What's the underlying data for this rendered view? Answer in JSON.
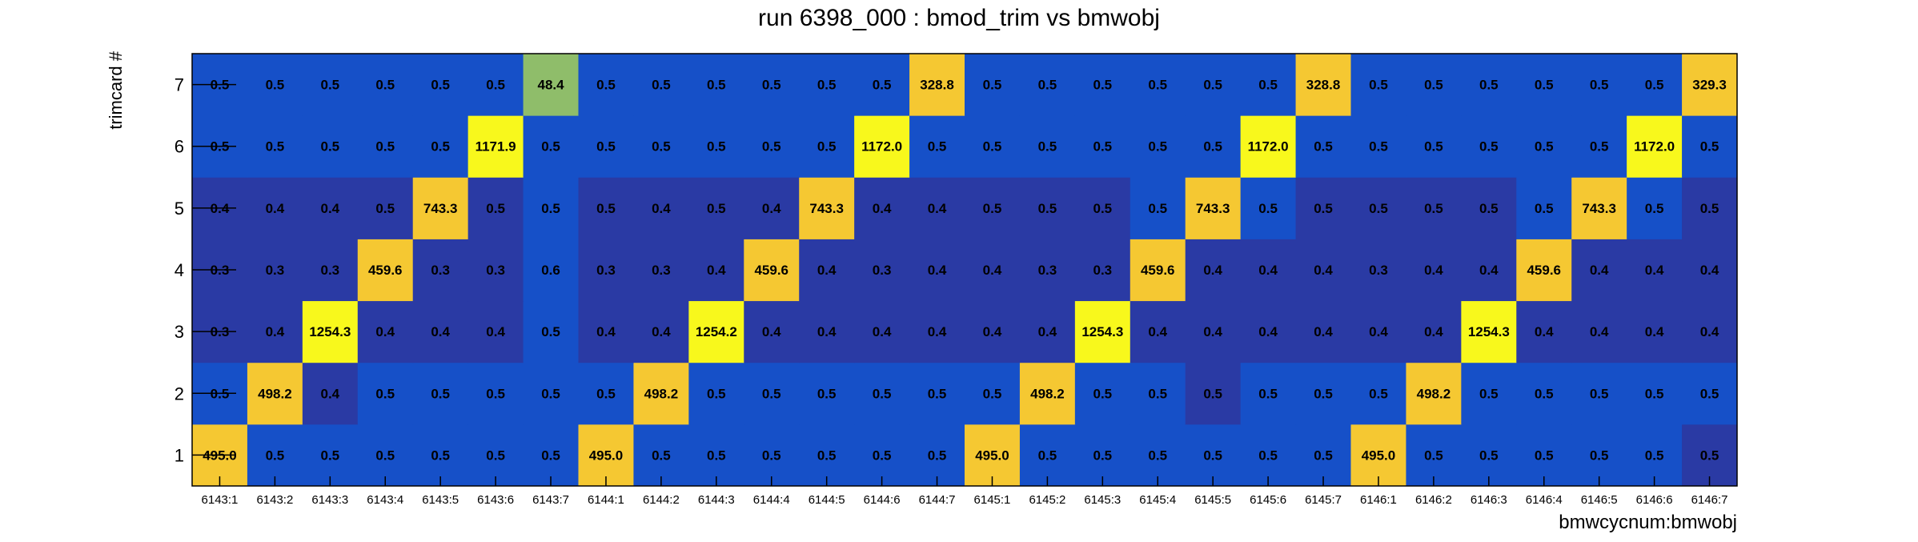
{
  "chart_data": {
    "type": "heatmap",
    "title": "run 6398_000 : bmod_trim vs bmwobj",
    "xlabel": "bmwcycnum:bmwobj",
    "ylabel": "trimcard #",
    "x_categories": [
      "6143:1",
      "6143:2",
      "6143:3",
      "6143:4",
      "6143:5",
      "6143:6",
      "6143:7",
      "6144:1",
      "6144:2",
      "6144:3",
      "6144:4",
      "6144:5",
      "6144:6",
      "6144:7",
      "6145:1",
      "6145:2",
      "6145:3",
      "6145:4",
      "6145:5",
      "6145:6",
      "6145:7",
      "6146:1",
      "6146:2",
      "6146:3",
      "6146:4",
      "6146:5",
      "6146:6",
      "6146:7"
    ],
    "y_categories": [
      "1",
      "2",
      "3",
      "4",
      "5",
      "6",
      "7"
    ],
    "cell_labels": [
      [
        "495.0",
        "0.5",
        "0.5",
        "0.5",
        "0.5",
        "0.5",
        "0.5",
        "495.0",
        "0.5",
        "0.5",
        "0.5",
        "0.5",
        "0.5",
        "0.5",
        "495.0",
        "0.5",
        "0.5",
        "0.5",
        "0.5",
        "0.5",
        "0.5",
        "495.0",
        "0.5",
        "0.5",
        "0.5",
        "0.5",
        "0.5",
        "0.5"
      ],
      [
        "0.5",
        "498.2",
        "0.4",
        "0.5",
        "0.5",
        "0.5",
        "0.5",
        "0.5",
        "498.2",
        "0.5",
        "0.5",
        "0.5",
        "0.5",
        "0.5",
        "0.5",
        "498.2",
        "0.5",
        "0.5",
        "0.5",
        "0.5",
        "0.5",
        "0.5",
        "498.2",
        "0.5",
        "0.5",
        "0.5",
        "0.5",
        "0.5"
      ],
      [
        "0.3",
        "0.4",
        "1254.3",
        "0.4",
        "0.4",
        "0.4",
        "0.5",
        "0.4",
        "0.4",
        "1254.2",
        "0.4",
        "0.4",
        "0.4",
        "0.4",
        "0.4",
        "0.4",
        "1254.3",
        "0.4",
        "0.4",
        "0.4",
        "0.4",
        "0.4",
        "0.4",
        "1254.3",
        "0.4",
        "0.4",
        "0.4",
        "0.4"
      ],
      [
        "0.3",
        "0.3",
        "0.3",
        "459.6",
        "0.3",
        "0.3",
        "0.6",
        "0.3",
        "0.3",
        "0.4",
        "459.6",
        "0.4",
        "0.3",
        "0.4",
        "0.4",
        "0.3",
        "0.3",
        "459.6",
        "0.4",
        "0.4",
        "0.4",
        "0.3",
        "0.4",
        "0.4",
        "459.6",
        "0.4",
        "0.4",
        "0.4"
      ],
      [
        "0.4",
        "0.4",
        "0.4",
        "0.5",
        "743.3",
        "0.5",
        "0.5",
        "0.5",
        "0.4",
        "0.5",
        "0.4",
        "743.3",
        "0.4",
        "0.4",
        "0.5",
        "0.5",
        "0.5",
        "0.5",
        "743.3",
        "0.5",
        "0.5",
        "0.5",
        "0.5",
        "0.5",
        "0.5",
        "743.3",
        "0.5",
        "0.5"
      ],
      [
        "0.5",
        "0.5",
        "0.5",
        "0.5",
        "0.5",
        "1171.9",
        "0.5",
        "0.5",
        "0.5",
        "0.5",
        "0.5",
        "0.5",
        "1172.0",
        "0.5",
        "0.5",
        "0.5",
        "0.5",
        "0.5",
        "0.5",
        "1172.0",
        "0.5",
        "0.5",
        "0.5",
        "0.5",
        "0.5",
        "0.5",
        "1172.0",
        "0.5"
      ],
      [
        "0.5",
        "0.5",
        "0.5",
        "0.5",
        "0.5",
        "0.5",
        "48.4",
        "0.5",
        "0.5",
        "0.5",
        "0.5",
        "0.5",
        "0.5",
        "328.8",
        "0.5",
        "0.5",
        "0.5",
        "0.5",
        "0.5",
        "0.5",
        "328.8",
        "0.5",
        "0.5",
        "0.5",
        "0.5",
        "0.5",
        "0.5",
        "329.3"
      ]
    ],
    "cell_colors": [
      [
        "#f5c832",
        "#1650c8",
        "#1650c8",
        "#1650c8",
        "#1650c8",
        "#1650c8",
        "#1650c8",
        "#f5c832",
        "#1650c8",
        "#1650c8",
        "#1650c8",
        "#1650c8",
        "#1650c8",
        "#1650c8",
        "#f5c832",
        "#1650c8",
        "#1650c8",
        "#1650c8",
        "#1650c8",
        "#1650c8",
        "#1650c8",
        "#f5c832",
        "#1650c8",
        "#1650c8",
        "#1650c8",
        "#1650c8",
        "#1650c8",
        "#2a3aa4"
      ],
      [
        "#1650c8",
        "#f5c832",
        "#2a3aa4",
        "#1650c8",
        "#1650c8",
        "#1650c8",
        "#1650c8",
        "#1650c8",
        "#f5c832",
        "#1650c8",
        "#1650c8",
        "#1650c8",
        "#1650c8",
        "#1650c8",
        "#1650c8",
        "#f5c832",
        "#1650c8",
        "#1650c8",
        "#2a3aa4",
        "#1650c8",
        "#1650c8",
        "#1650c8",
        "#f5c832",
        "#1650c8",
        "#1650c8",
        "#1650c8",
        "#1650c8",
        "#1650c8"
      ],
      [
        "#2a3aa4",
        "#2a3aa4",
        "#f8f81c",
        "#2a3aa4",
        "#2a3aa4",
        "#2a3aa4",
        "#1650c8",
        "#2a3aa4",
        "#2a3aa4",
        "#f8f81c",
        "#2a3aa4",
        "#2a3aa4",
        "#2a3aa4",
        "#2a3aa4",
        "#2a3aa4",
        "#2a3aa4",
        "#f8f81c",
        "#2a3aa4",
        "#2a3aa4",
        "#2a3aa4",
        "#2a3aa4",
        "#2a3aa4",
        "#2a3aa4",
        "#f8f81c",
        "#2a3aa4",
        "#2a3aa4",
        "#2a3aa4",
        "#2a3aa4"
      ],
      [
        "#2a3aa4",
        "#2a3aa4",
        "#2a3aa4",
        "#f5c832",
        "#2a3aa4",
        "#2a3aa4",
        "#1650c8",
        "#2a3aa4",
        "#2a3aa4",
        "#2a3aa4",
        "#f5c832",
        "#2a3aa4",
        "#2a3aa4",
        "#2a3aa4",
        "#2a3aa4",
        "#2a3aa4",
        "#2a3aa4",
        "#f5c832",
        "#2a3aa4",
        "#2a3aa4",
        "#2a3aa4",
        "#2a3aa4",
        "#2a3aa4",
        "#2a3aa4",
        "#f5c832",
        "#2a3aa4",
        "#2a3aa4",
        "#2a3aa4"
      ],
      [
        "#2a3aa4",
        "#2a3aa4",
        "#2a3aa4",
        "#2a3aa4",
        "#f5c832",
        "#2a3aa4",
        "#1650c8",
        "#2a3aa4",
        "#2a3aa4",
        "#2a3aa4",
        "#2a3aa4",
        "#f5c832",
        "#2a3aa4",
        "#2a3aa4",
        "#2a3aa4",
        "#2a3aa4",
        "#2a3aa4",
        "#1650c8",
        "#f5c832",
        "#1650c8",
        "#2a3aa4",
        "#2a3aa4",
        "#2a3aa4",
        "#2a3aa4",
        "#1650c8",
        "#f5c832",
        "#1650c8",
        "#2a3aa4"
      ],
      [
        "#1650c8",
        "#1650c8",
        "#1650c8",
        "#1650c8",
        "#1650c8",
        "#f8f81c",
        "#1650c8",
        "#1650c8",
        "#1650c8",
        "#1650c8",
        "#1650c8",
        "#1650c8",
        "#f8f81c",
        "#1650c8",
        "#1650c8",
        "#1650c8",
        "#1650c8",
        "#1650c8",
        "#1650c8",
        "#f8f81c",
        "#1650c8",
        "#1650c8",
        "#1650c8",
        "#1650c8",
        "#1650c8",
        "#1650c8",
        "#f8f81c",
        "#1650c8"
      ],
      [
        "#1650c8",
        "#1650c8",
        "#1650c8",
        "#1650c8",
        "#1650c8",
        "#1650c8",
        "#8fbd6a",
        "#1650c8",
        "#1650c8",
        "#1650c8",
        "#1650c8",
        "#1650c8",
        "#1650c8",
        "#f5c832",
        "#1650c8",
        "#1650c8",
        "#1650c8",
        "#1650c8",
        "#1650c8",
        "#1650c8",
        "#f5c832",
        "#1650c8",
        "#1650c8",
        "#1650c8",
        "#1650c8",
        "#1650c8",
        "#1650c8",
        "#f5c832"
      ]
    ],
    "grid": false,
    "legend": "none"
  }
}
